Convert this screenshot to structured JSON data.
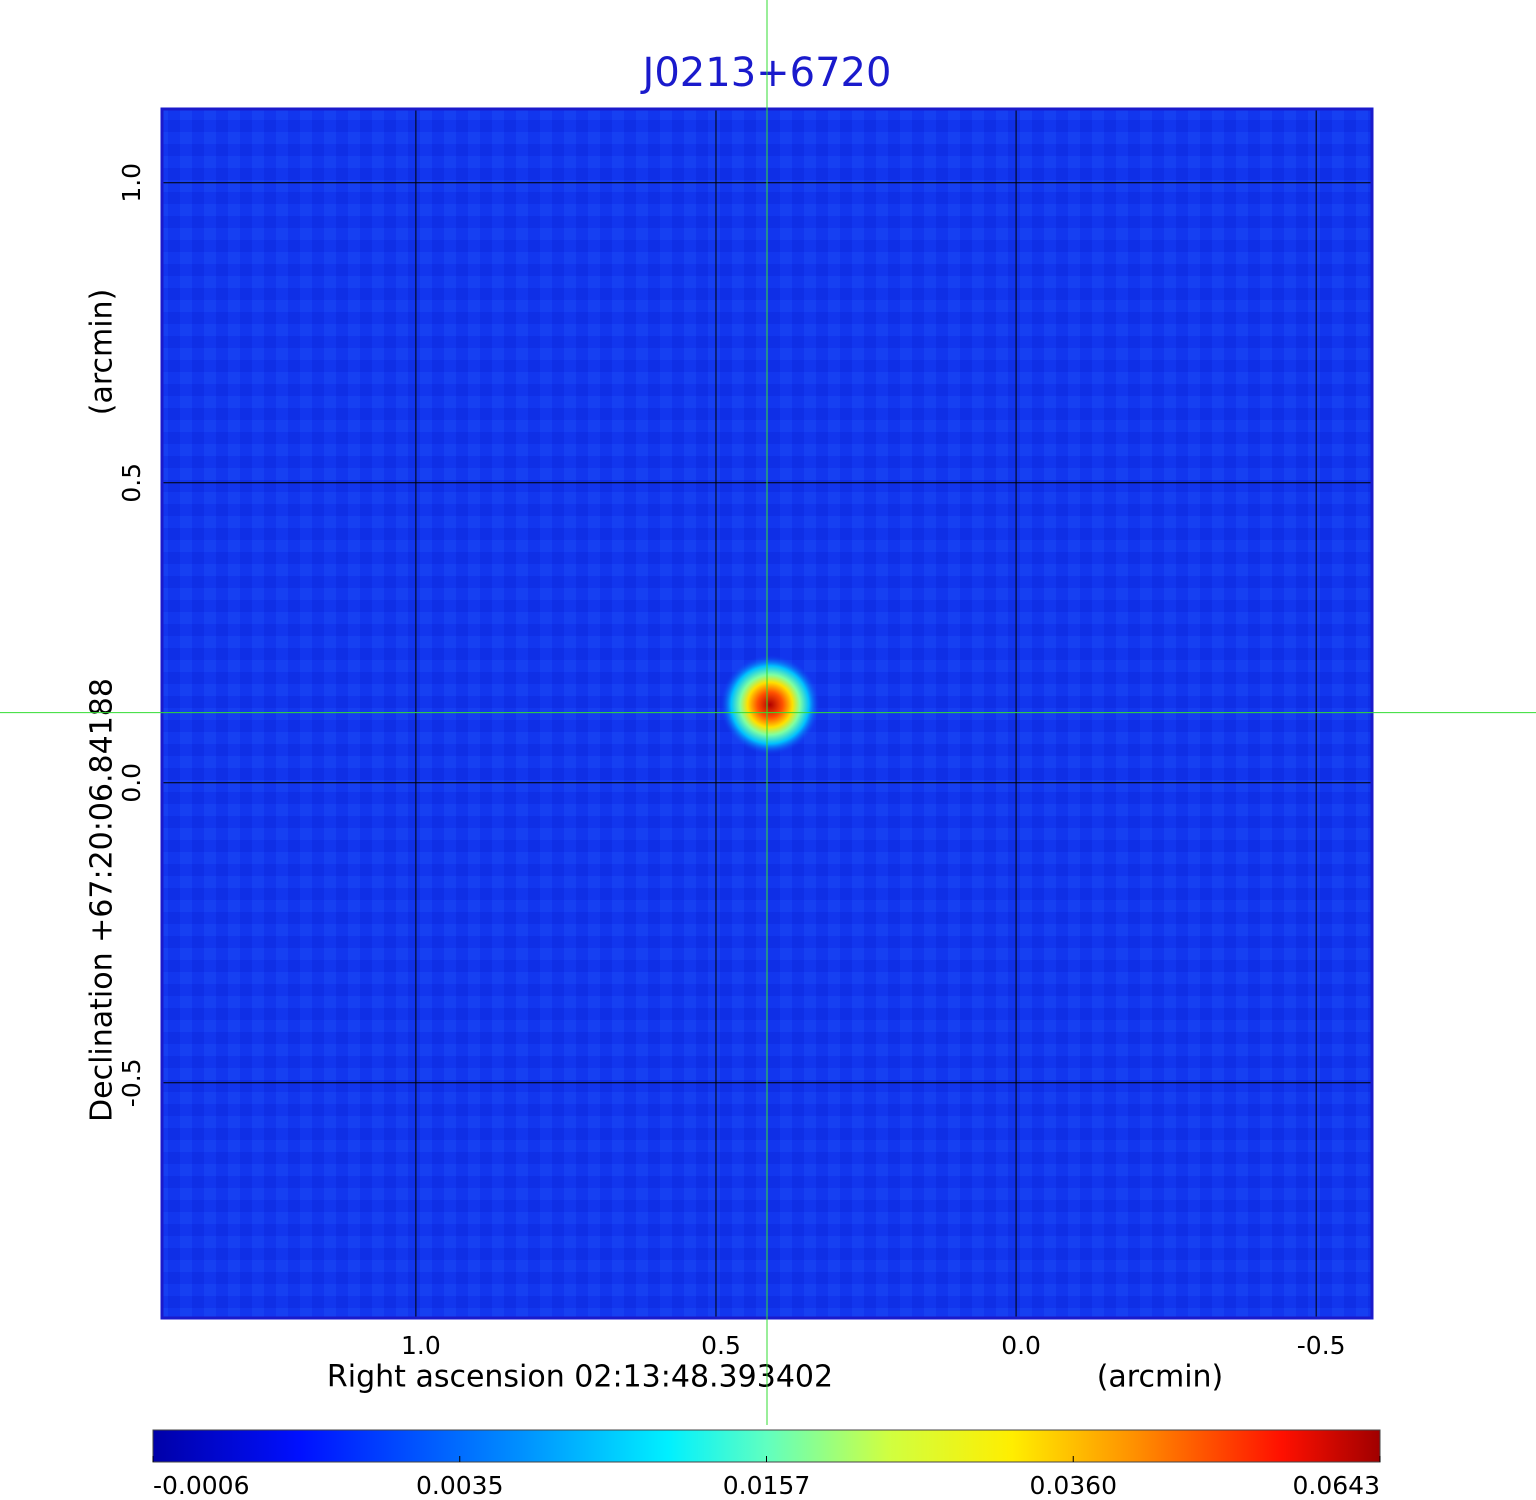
{
  "chart_data": {
    "type": "image",
    "title": "J0213+6720",
    "x_label": "Right ascension  02:13:48.393402",
    "x_unit": "(arcmin)",
    "y_label": "Declination  +67:20:06.84188",
    "y_unit": "(arcmin)",
    "xlim": [
      1.423,
      -0.593
    ],
    "ylim": [
      -0.892,
      1.123
    ],
    "xticks": [
      {
        "value": 1,
        "label": "1.0"
      },
      0.5,
      {
        "value": 0,
        "label": "0.0"
      },
      -0.5
    ],
    "yticks": [
      {
        "value": 1,
        "label": "1.0"
      },
      0.5,
      {
        "value": 0,
        "label": "0.0"
      },
      -0.5
    ],
    "grid": true,
    "crosshair": {
      "x": 0.415,
      "y": 0.117
    },
    "source": {
      "x": 0.41,
      "y": 0.13,
      "peak": 0.0643
    },
    "colorbar": {
      "ticks": [
        -0.0006,
        0.0035,
        0.0157,
        {
          "value": 0.036,
          "label": "0.0360"
        },
        0.0643
      ]
    }
  }
}
